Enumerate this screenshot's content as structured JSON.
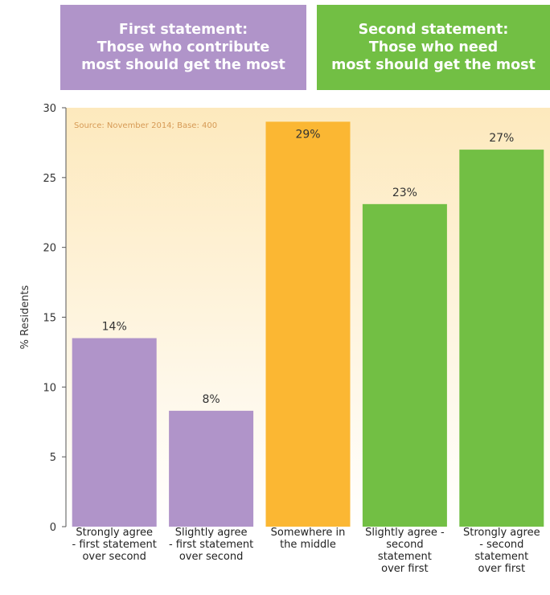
{
  "statements": [
    {
      "lines": [
        "First statement:",
        "Those who contribute",
        "most should get the most"
      ],
      "color": "#b094c9"
    },
    {
      "lines": [
        "Second statement:",
        "Those who need",
        "most should get the most"
      ],
      "color": "#72bf44"
    }
  ],
  "chart_data": {
    "type": "bar",
    "categories": [
      [
        "Strongly agree",
        "- first statement",
        "over second"
      ],
      [
        "Slightly agree",
        "- first statement",
        "over second"
      ],
      [
        "Somewhere in",
        "the middle"
      ],
      [
        "Slightly agree -",
        "second",
        "statement",
        "over first"
      ],
      [
        "Strongly agree",
        "- second",
        "statement",
        "over first"
      ]
    ],
    "values": [
      13.5,
      8.3,
      29,
      23.1,
      27
    ],
    "data_labels": [
      "14%",
      "8%",
      "29%",
      "23%",
      "27%"
    ],
    "bar_colors": [
      "#b094c9",
      "#b094c9",
      "#fbb733",
      "#72bf44",
      "#72bf44"
    ],
    "title": "",
    "xlabel": "",
    "ylabel": "% Residents",
    "ylim": [
      0,
      30
    ],
    "yticks": [
      "0",
      "5",
      "10",
      "15",
      "20",
      "25",
      "30"
    ],
    "annotation": "Source: November 2014; Base: 400",
    "background_gradient": [
      "#fde9bd",
      "#ffffff"
    ],
    "grid": false
  }
}
